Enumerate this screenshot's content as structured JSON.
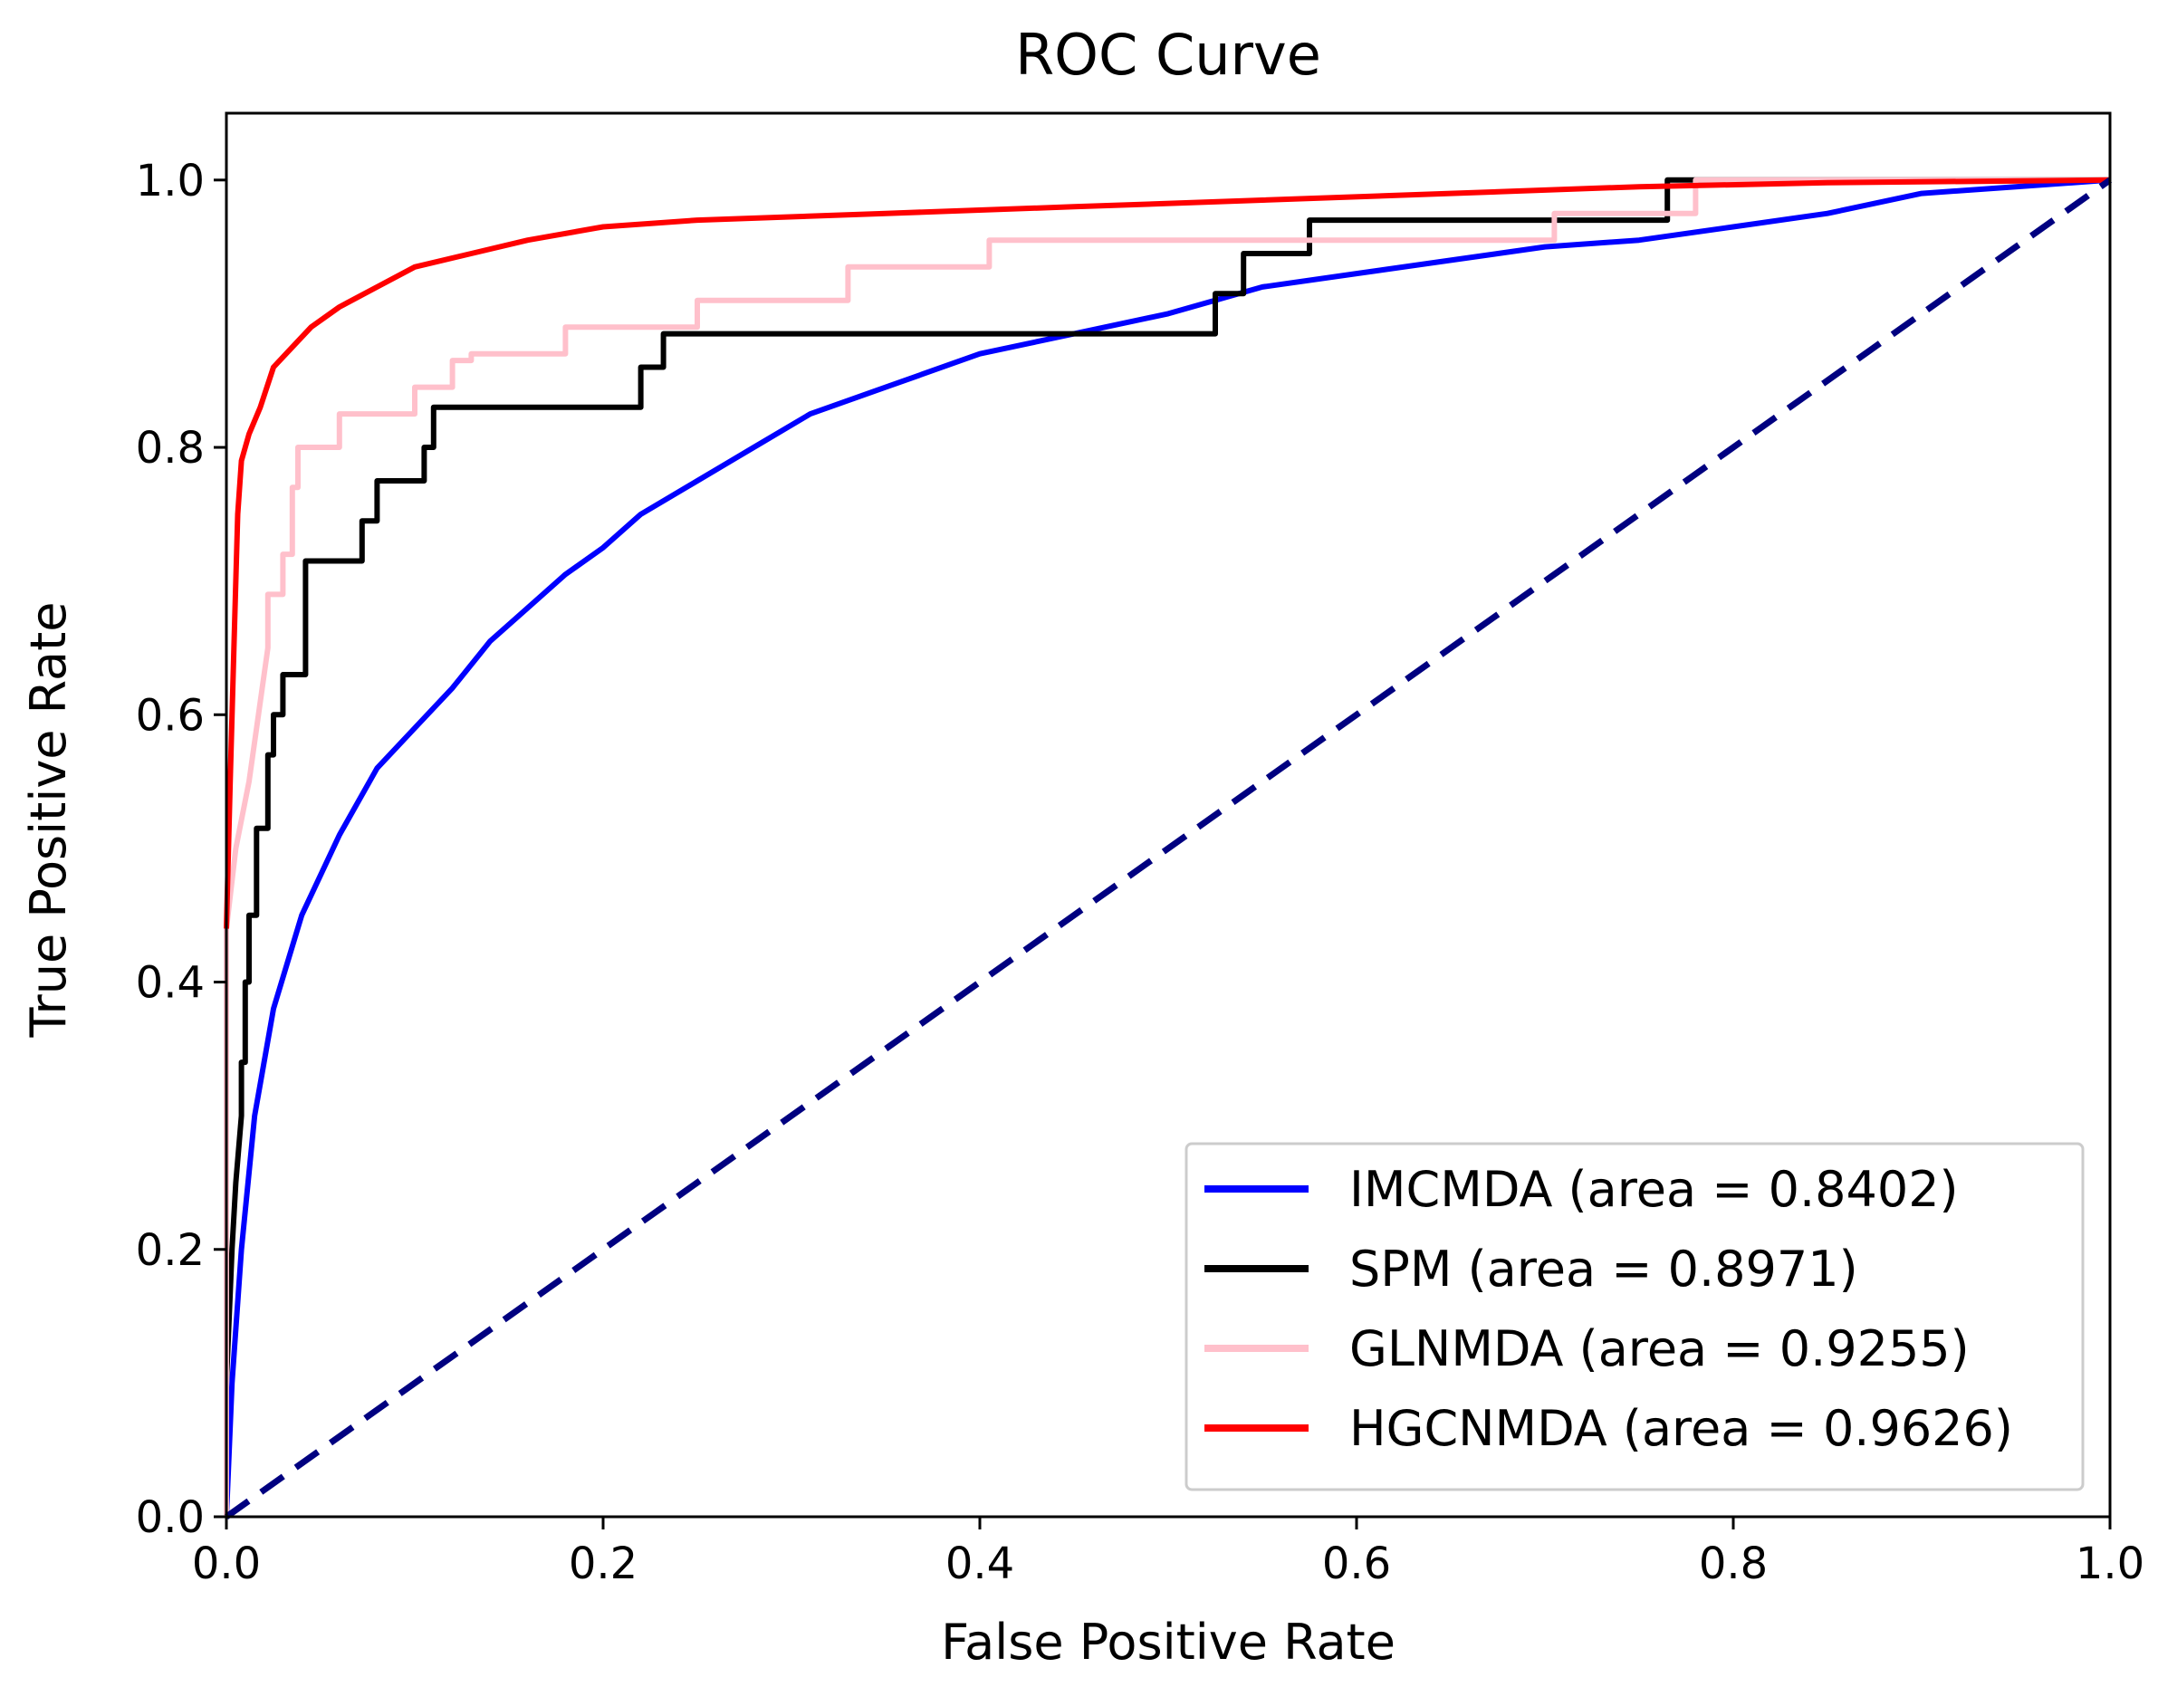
{
  "chart_data": {
    "type": "line",
    "title": "ROC Curve",
    "xlabel": "False Positive Rate",
    "ylabel": "True Positive Rate",
    "xlim": [
      0.0,
      1.0
    ],
    "ylim": [
      0.0,
      1.05
    ],
    "xticks": [
      "0.0",
      "0.2",
      "0.4",
      "0.6",
      "0.8",
      "1.0"
    ],
    "yticks": [
      "0.0",
      "0.2",
      "0.4",
      "0.6",
      "0.8",
      "1.0"
    ],
    "grid": false,
    "legend_position": "lower-right",
    "series": [
      {
        "name": "IMCMDA (area = 0.8402)",
        "color": "#0000ff",
        "style": "solid",
        "points": [
          [
            0,
            0
          ],
          [
            0.003,
            0.1
          ],
          [
            0.008,
            0.2
          ],
          [
            0.015,
            0.3
          ],
          [
            0.025,
            0.38
          ],
          [
            0.04,
            0.45
          ],
          [
            0.06,
            0.51
          ],
          [
            0.08,
            0.56
          ],
          [
            0.1,
            0.59
          ],
          [
            0.12,
            0.62
          ],
          [
            0.14,
            0.655
          ],
          [
            0.16,
            0.68
          ],
          [
            0.18,
            0.705
          ],
          [
            0.2,
            0.725
          ],
          [
            0.22,
            0.75
          ],
          [
            0.25,
            0.775
          ],
          [
            0.28,
            0.8
          ],
          [
            0.31,
            0.825
          ],
          [
            0.35,
            0.845
          ],
          [
            0.4,
            0.87
          ],
          [
            0.45,
            0.885
          ],
          [
            0.5,
            0.9
          ],
          [
            0.55,
            0.92
          ],
          [
            0.6,
            0.93
          ],
          [
            0.65,
            0.94
          ],
          [
            0.7,
            0.95
          ],
          [
            0.75,
            0.955
          ],
          [
            0.8,
            0.965
          ],
          [
            0.85,
            0.975
          ],
          [
            0.9,
            0.99
          ],
          [
            0.95,
            0.995
          ],
          [
            1.0,
            1.0
          ]
        ]
      },
      {
        "name": "SPM (area = 0.8971)",
        "color": "#000000",
        "style": "solid",
        "points": [
          [
            0,
            0
          ],
          [
            0,
            0.1
          ],
          [
            0.003,
            0.2
          ],
          [
            0.005,
            0.25
          ],
          [
            0.008,
            0.3
          ],
          [
            0.008,
            0.34
          ],
          [
            0.01,
            0.34
          ],
          [
            0.01,
            0.4
          ],
          [
            0.012,
            0.4
          ],
          [
            0.012,
            0.45
          ],
          [
            0.016,
            0.45
          ],
          [
            0.016,
            0.515
          ],
          [
            0.022,
            0.515
          ],
          [
            0.022,
            0.57
          ],
          [
            0.025,
            0.57
          ],
          [
            0.025,
            0.6
          ],
          [
            0.03,
            0.6
          ],
          [
            0.03,
            0.63
          ],
          [
            0.042,
            0.63
          ],
          [
            0.042,
            0.715
          ],
          [
            0.072,
            0.715
          ],
          [
            0.072,
            0.745
          ],
          [
            0.08,
            0.745
          ],
          [
            0.08,
            0.775
          ],
          [
            0.105,
            0.775
          ],
          [
            0.105,
            0.8
          ],
          [
            0.11,
            0.8
          ],
          [
            0.11,
            0.83
          ],
          [
            0.22,
            0.83
          ],
          [
            0.22,
            0.86
          ],
          [
            0.232,
            0.86
          ],
          [
            0.232,
            0.885
          ],
          [
            0.525,
            0.885
          ],
          [
            0.525,
            0.915
          ],
          [
            0.54,
            0.915
          ],
          [
            0.54,
            0.945
          ],
          [
            0.575,
            0.945
          ],
          [
            0.575,
            0.97
          ],
          [
            0.765,
            0.97
          ],
          [
            0.765,
            1.0
          ],
          [
            1.0,
            1.0
          ]
        ]
      },
      {
        "name": "GLNMDA (area = 0.9255)",
        "color": "#ffc0cb",
        "style": "solid",
        "points": [
          [
            0,
            0
          ],
          [
            0,
            0.44
          ],
          [
            0.005,
            0.5
          ],
          [
            0.012,
            0.55
          ],
          [
            0.017,
            0.6
          ],
          [
            0.022,
            0.65
          ],
          [
            0.022,
            0.69
          ],
          [
            0.03,
            0.69
          ],
          [
            0.03,
            0.72
          ],
          [
            0.035,
            0.72
          ],
          [
            0.035,
            0.77
          ],
          [
            0.038,
            0.77
          ],
          [
            0.038,
            0.8
          ],
          [
            0.06,
            0.8
          ],
          [
            0.06,
            0.825
          ],
          [
            0.1,
            0.825
          ],
          [
            0.1,
            0.845
          ],
          [
            0.12,
            0.845
          ],
          [
            0.12,
            0.865
          ],
          [
            0.13,
            0.865
          ],
          [
            0.13,
            0.87
          ],
          [
            0.18,
            0.87
          ],
          [
            0.18,
            0.89
          ],
          [
            0.25,
            0.89
          ],
          [
            0.25,
            0.91
          ],
          [
            0.33,
            0.91
          ],
          [
            0.33,
            0.935
          ],
          [
            0.405,
            0.935
          ],
          [
            0.405,
            0.955
          ],
          [
            0.705,
            0.955
          ],
          [
            0.705,
            0.975
          ],
          [
            0.78,
            0.975
          ],
          [
            0.78,
            1.0
          ],
          [
            1.0,
            1.0
          ]
        ]
      },
      {
        "name": "HGCNMDA (area = 0.9626)",
        "color": "#ff0000",
        "style": "solid",
        "points": [
          [
            0,
            0.44
          ],
          [
            0.002,
            0.55
          ],
          [
            0.004,
            0.65
          ],
          [
            0.006,
            0.75
          ],
          [
            0.008,
            0.79
          ],
          [
            0.012,
            0.81
          ],
          [
            0.018,
            0.83
          ],
          [
            0.025,
            0.86
          ],
          [
            0.035,
            0.875
          ],
          [
            0.045,
            0.89
          ],
          [
            0.06,
            0.905
          ],
          [
            0.08,
            0.92
          ],
          [
            0.1,
            0.935
          ],
          [
            0.13,
            0.945
          ],
          [
            0.16,
            0.955
          ],
          [
            0.2,
            0.965
          ],
          [
            0.25,
            0.97
          ],
          [
            0.35,
            0.975
          ],
          [
            0.45,
            0.98
          ],
          [
            0.55,
            0.985
          ],
          [
            0.65,
            0.99
          ],
          [
            0.75,
            0.995
          ],
          [
            0.85,
            0.998
          ],
          [
            1.0,
            1.0
          ]
        ]
      },
      {
        "name": "",
        "color": "#000080",
        "style": "dashed",
        "points": [
          [
            0,
            0
          ],
          [
            1,
            1
          ]
        ]
      }
    ]
  }
}
